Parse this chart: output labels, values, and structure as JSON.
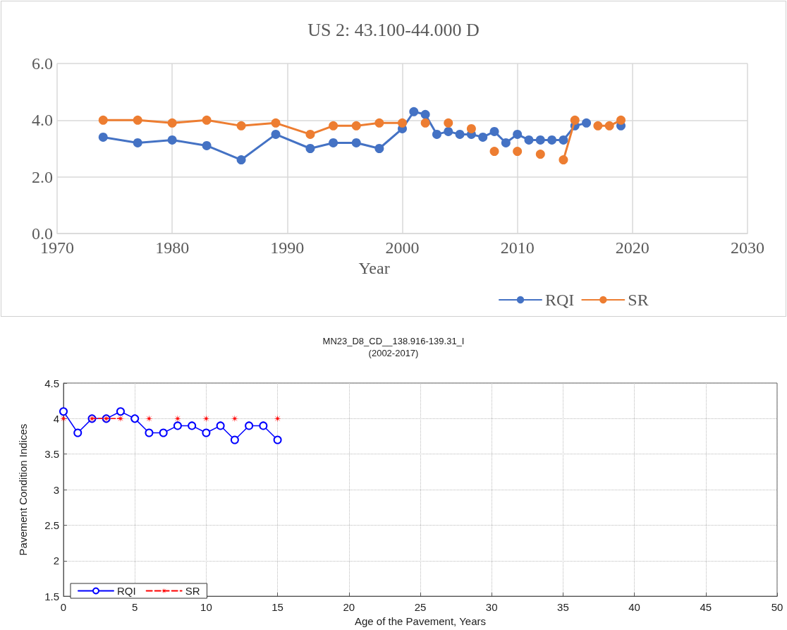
{
  "chart_data": [
    {
      "type": "line",
      "title": "US 2: 43.100-44.000 D",
      "xlabel": "Year",
      "x": [
        1974,
        1977,
        1980,
        1983,
        1986,
        1989,
        1992,
        1994,
        1996,
        1998,
        2000,
        2001,
        2002,
        2003,
        2004,
        2005,
        2006,
        2007,
        2008,
        2009,
        2010,
        2011,
        2012,
        2013,
        2014,
        2015,
        2016,
        2017,
        2018,
        2019
      ],
      "series": [
        {
          "name": "RQI",
          "color": "#4472c4",
          "values": [
            3.4,
            3.2,
            3.3,
            3.1,
            2.6,
            3.5,
            3.0,
            3.2,
            3.2,
            3.0,
            3.7,
            4.3,
            4.2,
            3.5,
            3.6,
            3.5,
            3.5,
            3.4,
            3.6,
            3.2,
            3.5,
            3.3,
            3.3,
            3.3,
            3.3,
            3.8,
            3.9,
            null,
            null,
            3.8
          ]
        },
        {
          "name": "SR",
          "color": "#ed7d31",
          "values": [
            4.0,
            4.0,
            3.9,
            4.0,
            3.8,
            3.9,
            3.5,
            3.8,
            3.8,
            3.9,
            3.9,
            null,
            3.9,
            null,
            3.9,
            null,
            3.7,
            null,
            2.9,
            null,
            2.9,
            null,
            2.8,
            null,
            2.6,
            4.0,
            null,
            3.8,
            3.8,
            4.0
          ]
        }
      ],
      "xlim": [
        1970,
        2030
      ],
      "xticks": [
        1970,
        1980,
        1990,
        2000,
        2010,
        2020,
        2030
      ],
      "ylim": [
        0,
        6
      ],
      "yticks": [
        {
          "value": 0,
          "label": "0.0"
        },
        {
          "value": 2,
          "label": "2.0"
        },
        {
          "value": 4,
          "label": "4.0"
        },
        {
          "value": 6,
          "label": "6.0"
        }
      ],
      "grid": true,
      "legend": "bottom right",
      "marker": "circle"
    },
    {
      "type": "line",
      "title": "MN23_D8_CD__138.916-139.31_I",
      "subtitle": "(2002-2017)",
      "xlabel": "Age of the Pavement, Years",
      "ylabel": "Pavement Condition Indices",
      "x": [
        0,
        1,
        2,
        3,
        4,
        5,
        6,
        7,
        8,
        9,
        10,
        11,
        12,
        13,
        14,
        15
      ],
      "series": [
        {
          "name": "RQI",
          "color": "#0000ff",
          "marker": "circle",
          "line_style": "solid",
          "values": [
            4.1,
            3.8,
            4.0,
            4.0,
            4.1,
            4.0,
            3.8,
            3.8,
            3.9,
            3.9,
            3.8,
            3.9,
            3.7,
            3.9,
            3.9,
            3.7
          ]
        },
        {
          "name": "SR",
          "color": "#ff0000",
          "marker": "star",
          "line_style": "dashed",
          "values": [
            4.0,
            null,
            4.0,
            4.0,
            4.0,
            null,
            4.0,
            null,
            4.0,
            null,
            4.0,
            null,
            4.0,
            null,
            null,
            4.0
          ]
        }
      ],
      "xlim": [
        0,
        50
      ],
      "xticks": [
        0,
        5,
        10,
        15,
        20,
        25,
        30,
        35,
        40,
        45,
        50
      ],
      "ylim": [
        1.5,
        4.5
      ],
      "yticks": [
        1.5,
        2,
        2.5,
        3,
        3.5,
        4,
        4.5
      ],
      "grid": true,
      "legend": "bottom left"
    }
  ]
}
